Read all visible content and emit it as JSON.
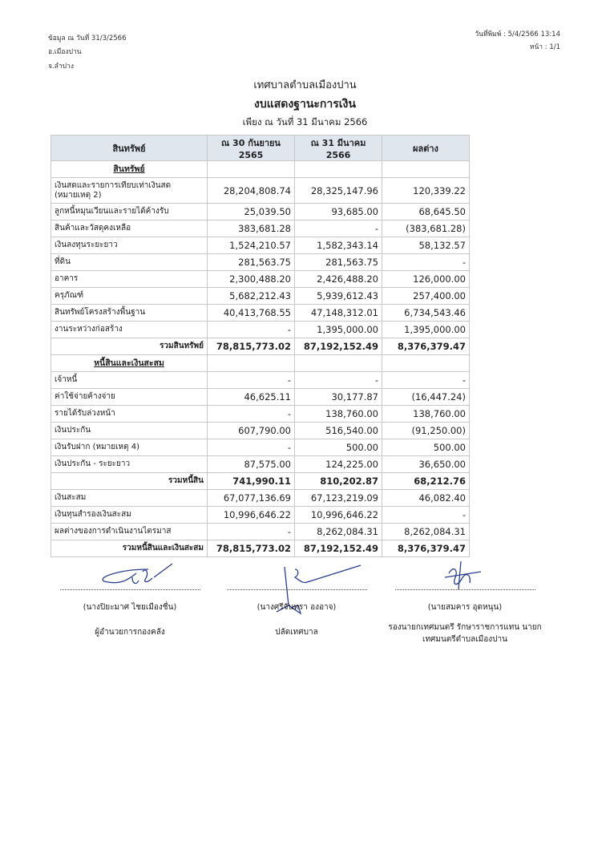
{
  "header": {
    "data_date": "ข้อมูล ณ วันที่ 31/3/2566",
    "district": "อ.เมืองปาน",
    "province": "จ.ลำปาง",
    "print_date": "วันที่พิมพ์ : 5/4/2566  13:14",
    "page": "หน้า : 1/1"
  },
  "document": {
    "organization": "เทศบาลตำบลเมืองปาน",
    "title": "งบแสดงฐานะการเงิน",
    "subtitle": "เพียง ณ วันที่ 31 มีนาคม 2566"
  },
  "table": {
    "columns": [
      "สินทรัพย์",
      "ณ 30 กันยายน 2565",
      "ณ 31 มีนาคม 2566",
      "ผลต่าง"
    ],
    "rows": [
      {
        "type": "section",
        "label": "สินทรัพย์",
        "values": [
          "",
          "",
          ""
        ]
      },
      {
        "type": "item",
        "label": "เงินสดและรายการเทียบเท่าเงินสด (หมายเหตุ 2)",
        "values": [
          "28,204,808.74",
          "28,325,147.96",
          "120,339.22"
        ]
      },
      {
        "type": "item",
        "label": "ลูกหนี้หมุนเวียนและรายได้ค้างรับ",
        "values": [
          "25,039.50",
          "93,685.00",
          "68,645.50"
        ]
      },
      {
        "type": "item",
        "label": "สินค้าและวัสดุคงเหลือ",
        "values": [
          "383,681.28",
          "-",
          "(383,681.28)"
        ]
      },
      {
        "type": "item",
        "label": "เงินลงทุนระยะยาว",
        "values": [
          "1,524,210.57",
          "1,582,343.14",
          "58,132.57"
        ]
      },
      {
        "type": "item",
        "label": "ที่ดิน",
        "values": [
          "281,563.75",
          "281,563.75",
          "-"
        ]
      },
      {
        "type": "item",
        "label": "อาคาร",
        "values": [
          "2,300,488.20",
          "2,426,488.20",
          "126,000.00"
        ]
      },
      {
        "type": "item",
        "label": "ครุภัณฑ์",
        "values": [
          "5,682,212.43",
          "5,939,612.43",
          "257,400.00"
        ]
      },
      {
        "type": "item",
        "label": "สินทรัพย์โครงสร้างพื้นฐาน",
        "values": [
          "40,413,768.55",
          "47,148,312.01",
          "6,734,543.46"
        ]
      },
      {
        "type": "item",
        "label": "งานระหว่างก่อสร้าง",
        "values": [
          "-",
          "1,395,000.00",
          "1,395,000.00"
        ]
      },
      {
        "type": "total",
        "label": "รวมสินทรัพย์",
        "values": [
          "78,815,773.02",
          "87,192,152.49",
          "8,376,379.47"
        ]
      },
      {
        "type": "section",
        "label": "หนี้สินและเงินสะสม",
        "values": [
          "",
          "",
          ""
        ]
      },
      {
        "type": "item",
        "label": "เจ้าหนี้",
        "values": [
          "-",
          "-",
          "-"
        ]
      },
      {
        "type": "item",
        "label": "ค่าใช้จ่ายค้างจ่าย",
        "values": [
          "46,625.11",
          "30,177.87",
          "(16,447.24)"
        ]
      },
      {
        "type": "item",
        "label": "รายได้รับล่วงหน้า",
        "values": [
          "-",
          "138,760.00",
          "138,760.00"
        ]
      },
      {
        "type": "item",
        "label": "เงินประกัน",
        "values": [
          "607,790.00",
          "516,540.00",
          "(91,250.00)"
        ]
      },
      {
        "type": "item",
        "label": "เงินรับฝาก (หมายเหตุ 4)",
        "values": [
          "-",
          "500.00",
          "500.00"
        ]
      },
      {
        "type": "item",
        "label": "เงินประกัน - ระยะยาว",
        "values": [
          "87,575.00",
          "124,225.00",
          "36,650.00"
        ]
      },
      {
        "type": "total",
        "label": "รวมหนี้สิน",
        "values": [
          "741,990.11",
          "810,202.87",
          "68,212.76"
        ]
      },
      {
        "type": "item",
        "label": "เงินสะสม",
        "values": [
          "67,077,136.69",
          "67,123,219.09",
          "46,082.40"
        ]
      },
      {
        "type": "item",
        "label": "เงินทุนสำรองเงินสะสม",
        "values": [
          "10,996,646.22",
          "10,996,646.22",
          "-"
        ]
      },
      {
        "type": "item",
        "label": "ผลต่างของการดำเนินงานไตรมาส",
        "values": [
          "-",
          "8,262,084.31",
          "8,262,084.31"
        ]
      },
      {
        "type": "total",
        "label": "รวมหนี้สินและเงินสะสม",
        "values": [
          "78,815,773.02",
          "87,192,152.49",
          "8,376,379.47"
        ]
      }
    ]
  },
  "signatures": [
    {
      "name": "(นางปิยะมาศ  ไชยเมืองชื่น)",
      "position": "ผู้อำนวยการกองคลัง"
    },
    {
      "name": "(นางศรีจันทรา  องอาจ)",
      "position": "ปลัดเทศบาล"
    },
    {
      "name": "(นายสมคาร  อุดหนุน)",
      "position": "รองนายกเทศมนตรี รักษาราชการแทน นายกเทศมนตรีตำบลเมืองปาน"
    }
  ]
}
